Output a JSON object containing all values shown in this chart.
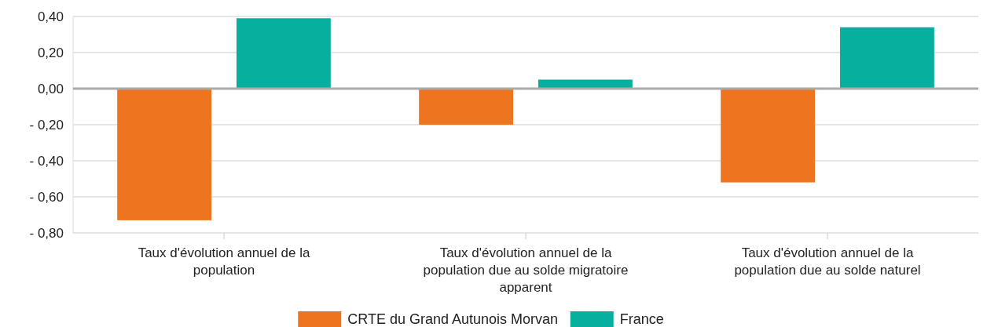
{
  "chart_data": {
    "type": "bar",
    "categories": [
      "Taux d'évolution annuel de la population",
      "Taux d'évolution annuel de la population due au solde migratoire apparent",
      "Taux d'évolution annuel de la population due au solde naturel"
    ],
    "series": [
      {
        "name": "CRTE du Grand Autunois Morvan",
        "color": "#ee7420",
        "values": [
          -0.73,
          -0.2,
          -0.52
        ]
      },
      {
        "name": "France",
        "color": "#07b09e",
        "values": [
          0.39,
          0.05,
          0.34
        ]
      }
    ],
    "ylim": [
      -0.8,
      0.4
    ],
    "yticks": [
      {
        "value": -0.8,
        "label": "- 0,80"
      },
      {
        "value": -0.6,
        "label": "- 0,60"
      },
      {
        "value": -0.4,
        "label": "- 0,40"
      },
      {
        "value": -0.2,
        "label": "- 0,20"
      },
      {
        "value": 0,
        "label": "0,00"
      },
      {
        "value": 0.2,
        "label": "0,20"
      },
      {
        "value": 0.4,
        "label": "0,40"
      }
    ],
    "grid": "y",
    "legend": "bottom"
  }
}
